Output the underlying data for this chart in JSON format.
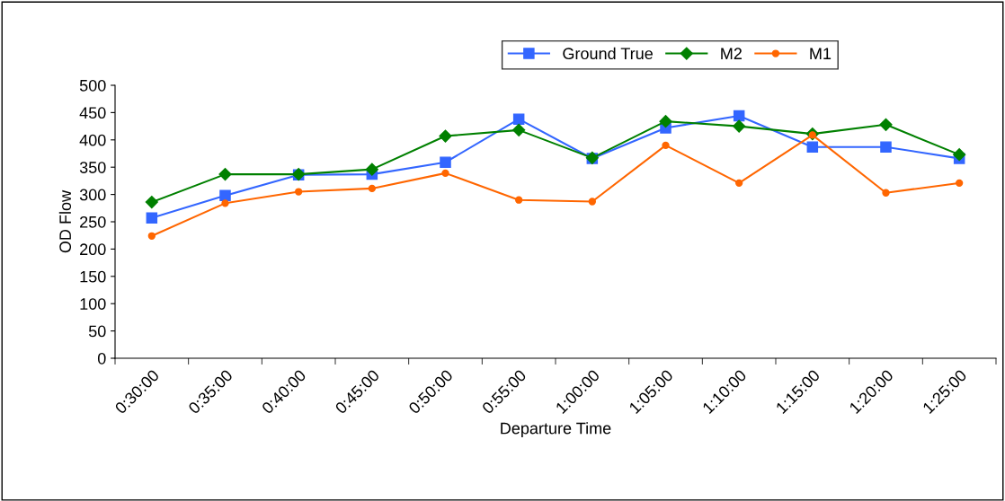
{
  "chart_data": {
    "type": "line",
    "xlabel": "Departure Time",
    "ylabel": "OD Flow",
    "categories": [
      "0:30:00",
      "0:35:00",
      "0:40:00",
      "0:45:00",
      "0:50:00",
      "0:55:00",
      "1:00:00",
      "1:05:00",
      "1:10:00",
      "1:15:00",
      "1:20:00",
      "1:25:00"
    ],
    "series": [
      {
        "name": "Ground True",
        "color": "#3366ff",
        "marker": "square",
        "values": [
          257,
          298,
          336,
          337,
          359,
          438,
          366,
          422,
          444,
          387,
          387,
          366
        ]
      },
      {
        "name": "M2",
        "color": "#008000",
        "marker": "diamond",
        "values": [
          286,
          337,
          337,
          346,
          407,
          418,
          367,
          434,
          425,
          411,
          428,
          373
        ]
      },
      {
        "name": "M1",
        "color": "#ff6600",
        "marker": "circle",
        "values": [
          224,
          284,
          305,
          311,
          339,
          290,
          287,
          390,
          321,
          409,
          303,
          321
        ]
      }
    ],
    "ylim": [
      0,
      500
    ],
    "yticks": [
      0,
      50,
      100,
      150,
      200,
      250,
      300,
      350,
      400,
      450,
      500
    ],
    "grid": false,
    "legend": "top",
    "line_style": "solid"
  }
}
